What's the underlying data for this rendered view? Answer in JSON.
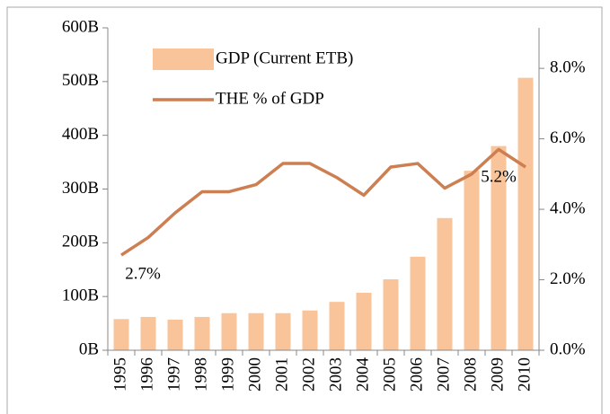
{
  "chart_data": {
    "type": "bar_line",
    "categories": [
      "1995",
      "1996",
      "1997",
      "1998",
      "1999",
      "2000",
      "2001",
      "2002",
      "2003",
      "2004",
      "2005",
      "2006",
      "2007",
      "2008",
      "2009",
      "2010"
    ],
    "series": [
      {
        "name": "GDP (Current ETB)",
        "color": "#f9c499",
        "type": "bar",
        "values": [
          58,
          62,
          57,
          62,
          69,
          69,
          69,
          74,
          90,
          107,
          132,
          174,
          246,
          334,
          380,
          507
        ]
      },
      {
        "name": "THE % of GDP",
        "color": "#cd7f52",
        "type": "line",
        "axis": "y2",
        "values": [
          2.7,
          3.2,
          3.9,
          4.5,
          4.5,
          4.7,
          5.3,
          5.3,
          4.9,
          4.4,
          5.2,
          5.3,
          4.6,
          5.0,
          5.7,
          5.2
        ],
        "value_labels": [
          "2.7%",
          null,
          null,
          null,
          null,
          null,
          null,
          null,
          null,
          null,
          null,
          null,
          null,
          null,
          null,
          "5.2%"
        ]
      }
    ],
    "ylim": [
      0,
      600
    ],
    "yticks": [
      {
        "value": 0,
        "label": "0B"
      },
      {
        "value": 100,
        "label": "100B"
      },
      {
        "value": 200,
        "label": "200B"
      },
      {
        "value": 300,
        "label": "300B"
      },
      {
        "value": 400,
        "label": "400B"
      },
      {
        "value": 500,
        "label": "500B"
      },
      {
        "value": 600,
        "label": "600B"
      }
    ],
    "y2lim": [
      0,
      9.15
    ],
    "y2ticks": [
      {
        "value": 0,
        "label": "0.0%"
      },
      {
        "value": 2,
        "label": "2.0%"
      },
      {
        "value": 4,
        "label": "4.0%"
      },
      {
        "value": 6,
        "label": "6.0%"
      },
      {
        "value": 8,
        "label": "8.0%"
      }
    ],
    "legend": "top-left"
  }
}
